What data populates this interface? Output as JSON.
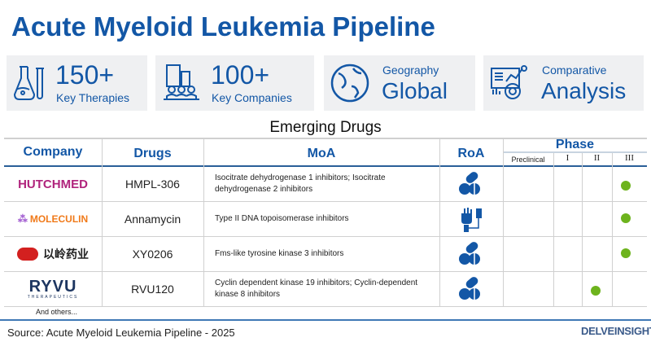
{
  "title": "Acute Myeloid Leukemia Pipeline",
  "cards": [
    {
      "big": "150+",
      "small": "Key Therapies",
      "icon": "flask-icon"
    },
    {
      "big": "100+",
      "small": "Key Companies",
      "icon": "companies-icon"
    },
    {
      "small": "Geography",
      "big": "Global",
      "icon": "globe-icon"
    },
    {
      "small": "Comparative",
      "big": "Analysis",
      "icon": "analysis-icon"
    }
  ],
  "section_title": "Emerging Drugs",
  "table": {
    "headers": {
      "company": "Company",
      "drugs": "Drugs",
      "moa": "MoA",
      "roa": "RoA",
      "phase": "Phase",
      "phases": [
        "Preclinical",
        "I",
        "II",
        "III"
      ]
    },
    "rows": [
      {
        "company": "HUTCHMED",
        "drug": "HMPL-306",
        "moa": "Isocitrate dehydrogenase 1 inhibitors; Isocitrate dehydrogenase 2 inhibitors",
        "roa": "oral-pill-icon",
        "phase": "III"
      },
      {
        "company": "MOLECULIN",
        "drug": "Annamycin",
        "moa": "Type II DNA topoisomerase inhibitors",
        "roa": "intravenous-icon",
        "phase": "III"
      },
      {
        "company": "以岭药业",
        "drug": "XY0206",
        "moa": "Fms-like tyrosine kinase 3 inhibitors",
        "roa": "oral-pill-icon",
        "phase": "III"
      },
      {
        "company": "RYVU",
        "company_sub": "THERAPEUTICS",
        "drug": "RVU120",
        "moa": "Cyclin dependent kinase 19 inhibitors; Cyclin-dependent kinase 8 inhibitors",
        "roa": "oral-pill-icon",
        "phase": "II"
      }
    ],
    "footer": "And others..."
  },
  "source": "Source: Acute Myeloid Leukemia Pipeline - 2025",
  "brand": "DELVEINSIGHT",
  "colors": {
    "primary": "#1357a6",
    "dot": "#6db31d",
    "card": "#eff0f2"
  }
}
